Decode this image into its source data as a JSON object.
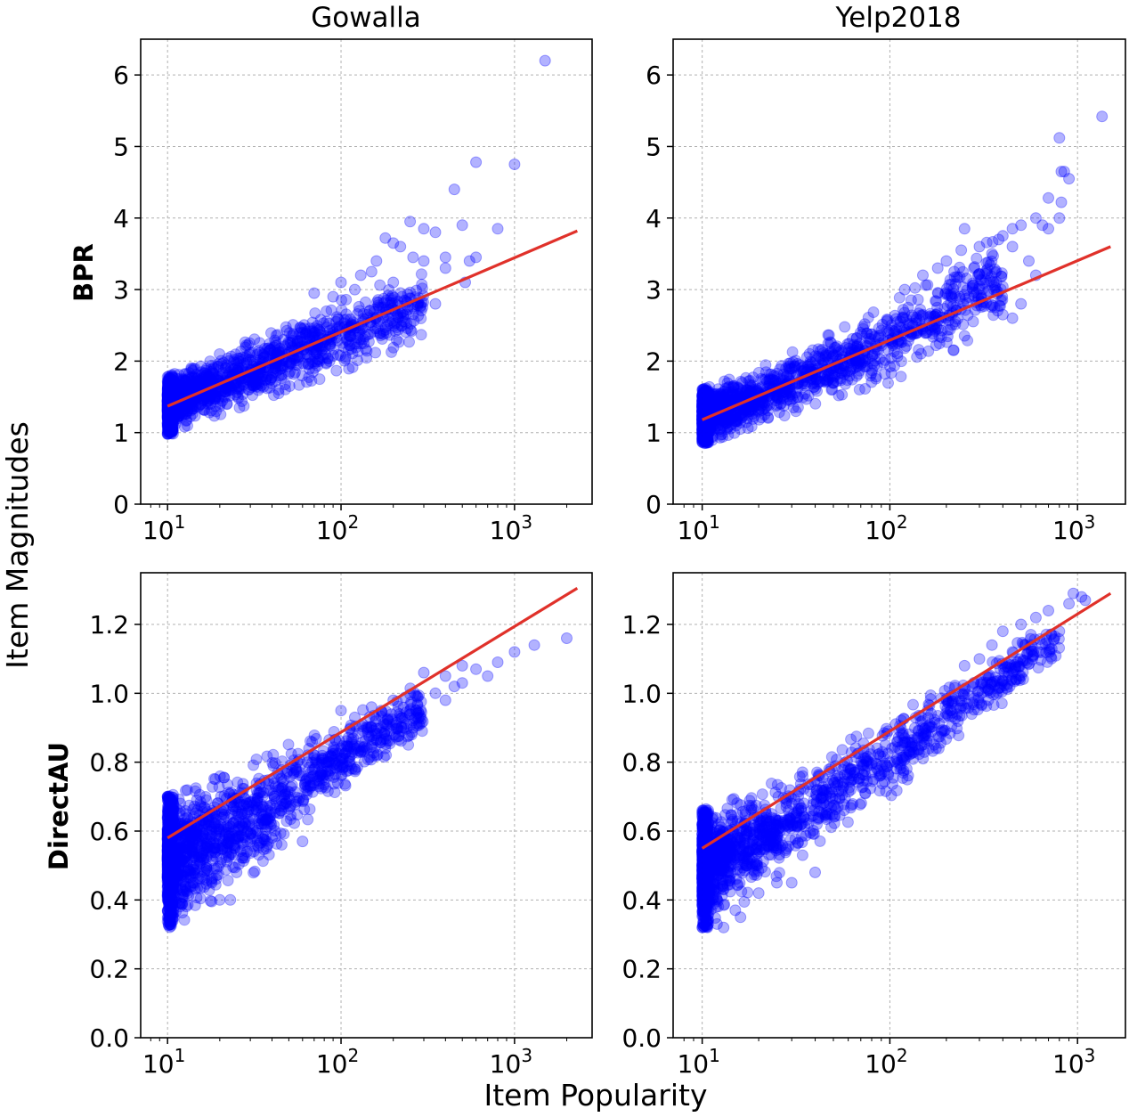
{
  "figure": {
    "xlabel": "Item Popularity",
    "ylabel": "Item Magnitudes",
    "columns": [
      "Gowalla",
      "Yelp2018"
    ],
    "rows": [
      "BPR",
      "DirectAU"
    ],
    "point_color": "#0000ff",
    "line_color": "#e0312a"
  },
  "chart_data": [
    {
      "type": "scatter",
      "title": "Gowalla",
      "row_label": "BPR",
      "xscale": "log",
      "xlim": [
        7,
        2800
      ],
      "ylim": [
        0,
        6.5
      ],
      "xticks": [
        10,
        100,
        1000
      ],
      "xtick_labels": [
        "10^1",
        "10^2",
        "10^3"
      ],
      "yticks": [
        0,
        1,
        2,
        3,
        4,
        5,
        6
      ],
      "ytick_labels": [
        "0",
        "1",
        "2",
        "3",
        "4",
        "5",
        "6"
      ],
      "grid": true,
      "fit_line": {
        "x": [
          10,
          2300
        ],
        "y": [
          1.37,
          3.82
        ]
      },
      "bands": [
        {
          "x": [
            10,
            20,
            50,
            100,
            300
          ],
          "y_low": [
            0.98,
            1.25,
            1.6,
            1.85,
            2.3
          ],
          "y_high": [
            1.78,
            2.1,
            2.55,
            2.85,
            3.3
          ]
        }
      ],
      "outliers": [
        [
          1500,
          6.2
        ],
        [
          600,
          4.78
        ],
        [
          1000,
          4.75
        ],
        [
          450,
          4.4
        ],
        [
          800,
          3.85
        ],
        [
          500,
          3.9
        ],
        [
          300,
          3.85
        ],
        [
          250,
          3.95
        ],
        [
          180,
          3.72
        ],
        [
          350,
          3.8
        ],
        [
          200,
          3.65
        ],
        [
          400,
          3.45
        ],
        [
          550,
          3.4
        ],
        [
          300,
          3.4
        ],
        [
          150,
          3.25
        ],
        [
          130,
          3.2
        ],
        [
          100,
          3.1
        ],
        [
          70,
          2.95
        ],
        [
          220,
          3.6
        ],
        [
          520,
          3.1
        ],
        [
          600,
          3.45
        ],
        [
          400,
          3.3
        ],
        [
          260,
          3.45
        ],
        [
          160,
          3.4
        ],
        [
          120,
          3.0
        ],
        [
          90,
          2.9
        ],
        [
          200,
          3.1
        ],
        [
          350,
          2.8
        ]
      ]
    },
    {
      "type": "scatter",
      "title": "Yelp2018",
      "row_label": "BPR",
      "xscale": "log",
      "xlim": [
        7,
        1800
      ],
      "ylim": [
        0,
        6.5
      ],
      "xticks": [
        10,
        100,
        1000
      ],
      "xtick_labels": [
        "10^1",
        "10^2",
        "10^3"
      ],
      "yticks": [
        0,
        1,
        2,
        3,
        4,
        5,
        6
      ],
      "ytick_labels": [
        "0",
        "1",
        "2",
        "3",
        "4",
        "5",
        "6"
      ],
      "grid": true,
      "fit_line": {
        "x": [
          10,
          1500
        ],
        "y": [
          1.18,
          3.6
        ]
      },
      "bands": [
        {
          "x": [
            10,
            20,
            50,
            100,
            200,
            400
          ],
          "y_low": [
            0.85,
            1.1,
            1.5,
            1.7,
            2.1,
            2.5
          ],
          "y_high": [
            1.6,
            1.9,
            2.4,
            2.8,
            3.3,
            3.8
          ]
        }
      ],
      "outliers": [
        [
          1350,
          5.42
        ],
        [
          800,
          5.12
        ],
        [
          820,
          4.65
        ],
        [
          850,
          4.65
        ],
        [
          900,
          4.55
        ],
        [
          700,
          4.28
        ],
        [
          820,
          4.22
        ],
        [
          800,
          4.0
        ],
        [
          600,
          4.0
        ],
        [
          650,
          3.9
        ],
        [
          700,
          3.85
        ],
        [
          500,
          3.9
        ],
        [
          450,
          3.85
        ],
        [
          400,
          3.75
        ],
        [
          450,
          3.6
        ],
        [
          250,
          3.85
        ],
        [
          300,
          3.6
        ],
        [
          350,
          3.5
        ],
        [
          200,
          3.4
        ],
        [
          220,
          3.25
        ],
        [
          300,
          3.05
        ],
        [
          500,
          2.8
        ],
        [
          450,
          2.6
        ],
        [
          400,
          2.65
        ],
        [
          150,
          3.2
        ],
        [
          180,
          3.3
        ],
        [
          120,
          3.0
        ],
        [
          600,
          3.2
        ],
        [
          550,
          3.4
        ],
        [
          240,
          3.55
        ],
        [
          380,
          3.7
        ],
        [
          280,
          3.3
        ]
      ]
    },
    {
      "type": "scatter",
      "title": "Gowalla",
      "row_label": "DirectAU",
      "xscale": "log",
      "xlim": [
        7,
        2800
      ],
      "ylim": [
        0,
        1.35
      ],
      "xticks": [
        10,
        100,
        1000
      ],
      "xtick_labels": [
        "10^1",
        "10^2",
        "10^3"
      ],
      "yticks": [
        0,
        0.2,
        0.4,
        0.6,
        0.8,
        1.0,
        1.2
      ],
      "ytick_labels": [
        "0.0",
        "0.2",
        "0.4",
        "0.6",
        "0.8",
        "1.0",
        "1.2"
      ],
      "grid": true,
      "fit_line": {
        "x": [
          10,
          2300
        ],
        "y": [
          0.58,
          1.305
        ]
      },
      "bands": [
        {
          "x": [
            10,
            15,
            30,
            60,
            100,
            300
          ],
          "y_low": [
            0.32,
            0.36,
            0.47,
            0.62,
            0.72,
            0.88
          ],
          "y_high": [
            0.7,
            0.73,
            0.8,
            0.87,
            0.92,
            1.04
          ]
        }
      ],
      "outliers": [
        [
          2000,
          1.16
        ],
        [
          1000,
          1.12
        ],
        [
          1300,
          1.14
        ],
        [
          800,
          1.09
        ],
        [
          600,
          1.07
        ],
        [
          500,
          1.08
        ],
        [
          700,
          1.05
        ],
        [
          400,
          1.05
        ],
        [
          450,
          1.02
        ],
        [
          300,
          1.06
        ],
        [
          350,
          1.0
        ],
        [
          200,
          0.98
        ],
        [
          150,
          0.96
        ],
        [
          100,
          0.95
        ],
        [
          120,
          0.93
        ],
        [
          30,
          0.57
        ],
        [
          40,
          0.58
        ],
        [
          60,
          0.57
        ],
        [
          20,
          0.4
        ],
        [
          23,
          0.4
        ],
        [
          25,
          0.48
        ],
        [
          35,
          0.62
        ],
        [
          45,
          0.66
        ],
        [
          18,
          0.45
        ],
        [
          500,
          1.03
        ],
        [
          400,
          0.98
        ],
        [
          250,
          0.94
        ]
      ]
    },
    {
      "type": "scatter",
      "title": "Yelp2018",
      "row_label": "DirectAU",
      "xscale": "log",
      "xlim": [
        7,
        1800
      ],
      "ylim": [
        0,
        1.35
      ],
      "xticks": [
        10,
        100,
        1000
      ],
      "xtick_labels": [
        "10^1",
        "10^2",
        "10^3"
      ],
      "yticks": [
        0,
        0.2,
        0.4,
        0.6,
        0.8,
        1.0,
        1.2
      ],
      "ytick_labels": [
        "0.0",
        "0.2",
        "0.4",
        "0.6",
        "0.8",
        "1.0",
        "1.2"
      ],
      "grid": true,
      "fit_line": {
        "x": [
          10,
          1500
        ],
        "y": [
          0.55,
          1.29
        ]
      },
      "bands": [
        {
          "x": [
            10,
            20,
            50,
            100,
            300,
            800
          ],
          "y_low": [
            0.32,
            0.42,
            0.6,
            0.7,
            0.92,
            1.1
          ],
          "y_high": [
            0.66,
            0.72,
            0.84,
            0.93,
            1.08,
            1.22
          ]
        }
      ],
      "outliers": [
        [
          950,
          1.29
        ],
        [
          1050,
          1.28
        ],
        [
          1100,
          1.27
        ],
        [
          900,
          1.26
        ],
        [
          700,
          1.24
        ],
        [
          600,
          1.22
        ],
        [
          800,
          1.18
        ],
        [
          500,
          1.2
        ],
        [
          400,
          1.18
        ],
        [
          450,
          1.12
        ],
        [
          350,
          1.14
        ],
        [
          300,
          1.1
        ],
        [
          250,
          1.08
        ],
        [
          200,
          0.98
        ],
        [
          210,
          0.95
        ],
        [
          150,
          0.9
        ],
        [
          120,
          0.87
        ],
        [
          100,
          0.8
        ],
        [
          80,
          0.77
        ],
        [
          60,
          0.75
        ],
        [
          40,
          0.48
        ],
        [
          30,
          0.45
        ],
        [
          25,
          0.45
        ],
        [
          12,
          0.33
        ],
        [
          15,
          0.37
        ],
        [
          13,
          0.32
        ],
        [
          16,
          0.35
        ],
        [
          20,
          0.42
        ],
        [
          500,
          1.05
        ]
      ]
    }
  ]
}
